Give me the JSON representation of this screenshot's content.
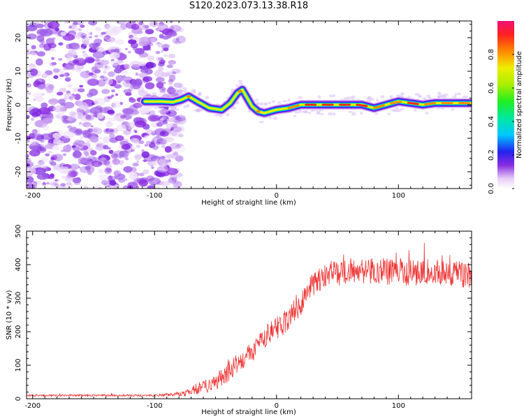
{
  "title": "S120.2023.073.13.38.R18",
  "chart_data": [
    {
      "type": "heatmap",
      "id": "spectrogram",
      "xlabel": "Height of straight line (km)",
      "ylabel": "Frequency (Hz)",
      "xlim": [
        -205,
        160
      ],
      "ylim": [
        -25,
        25
      ],
      "xticks": [
        -200,
        -100,
        0,
        100
      ],
      "yticks": [
        -20,
        -10,
        0,
        10,
        20
      ],
      "noise_region_x": [
        -205,
        -85
      ],
      "signal_start_x": -108,
      "trace": {
        "x": [
          -108,
          -95,
          -85,
          -78,
          -72,
          -65,
          -55,
          -45,
          -38,
          -32,
          -28,
          -24,
          -20,
          -15,
          -10,
          -5,
          0,
          10,
          20,
          30,
          40,
          50,
          60,
          70,
          80,
          90,
          100,
          110,
          120,
          130,
          140,
          150,
          160
        ],
        "y": [
          1,
          1,
          0.8,
          1.5,
          2.5,
          1,
          -1,
          -1.5,
          0.5,
          3.5,
          4.5,
          2,
          -0.5,
          -2,
          -2.5,
          -2,
          -1.5,
          -1,
          0,
          0,
          0,
          0,
          0,
          0,
          -1,
          0,
          1,
          0.5,
          0,
          0.5,
          0.5,
          0.5,
          0.5
        ]
      },
      "colorbar": {
        "label": "Normalized spectral amplitude",
        "range": [
          0,
          1
        ],
        "ticks": [
          0.0,
          0.2,
          0.4,
          0.6,
          0.8
        ]
      }
    },
    {
      "type": "line",
      "id": "snr",
      "xlabel": "Height of straight line (km)",
      "ylabel": "SNR (10 * v/v)",
      "xlim": [
        -205,
        160
      ],
      "ylim": [
        0,
        500
      ],
      "xticks": [
        -200,
        -100,
        0,
        100
      ],
      "yticks": [
        0,
        100,
        200,
        300,
        400,
        500
      ],
      "series": [
        {
          "name": "SNR",
          "color": "#ee3333",
          "envelope_x": [
            -205,
            -100,
            -75,
            -70,
            -60,
            -50,
            -40,
            -30,
            -20,
            -10,
            0,
            10,
            20,
            25,
            30,
            40,
            50,
            60,
            70,
            80,
            90,
            100,
            110,
            120,
            130,
            140,
            150,
            160
          ],
          "envelope_y": [
            10,
            10,
            15,
            25,
            35,
            50,
            80,
            110,
            140,
            180,
            210,
            240,
            290,
            320,
            340,
            370,
            375,
            380,
            380,
            385,
            380,
            378,
            375,
            380,
            375,
            370,
            370,
            370
          ],
          "noise_amplitude": [
            3,
            3,
            8,
            15,
            20,
            25,
            30,
            30,
            30,
            35,
            35,
            40,
            40,
            40,
            40,
            40,
            40,
            40,
            40,
            40,
            40,
            40,
            40,
            40,
            40,
            40,
            40,
            40
          ]
        }
      ]
    }
  ]
}
